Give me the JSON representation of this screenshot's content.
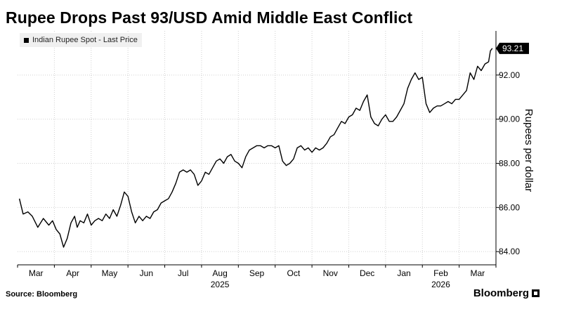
{
  "header": {
    "title": "Rupee Drops Past 93/USD Amid Middle East Conflict"
  },
  "legend": {
    "label": "Indian Rupee Spot - Last Price"
  },
  "footer": {
    "source": "Source: Bloomberg",
    "brand": "Bloomberg"
  },
  "colors": {
    "line": "#000000",
    "grid": "#d0d0d0",
    "last_price_box": "#000000"
  },
  "chart_data": {
    "type": "line",
    "title": "Rupee Drops Past 93/USD Amid Middle East Conflict",
    "ylabel": "Rupees per dollar",
    "xlabel": "",
    "ylim": [
      83.4,
      94
    ],
    "y_ticks": [
      "84.00",
      "86.00",
      "88.00",
      "90.00",
      "92.00"
    ],
    "y_tick_values": [
      84,
      86,
      88,
      90,
      92
    ],
    "x_ticks": [
      "Mar",
      "Apr",
      "May",
      "Jun",
      "Jul",
      "Aug",
      "Sep",
      "Oct",
      "Nov",
      "Dec",
      "Jan",
      "Feb",
      "Mar"
    ],
    "x_tick_positions": [
      0.5,
      1.5,
      2.5,
      3.5,
      4.5,
      5.5,
      6.5,
      7.5,
      8.5,
      9.5,
      10.5,
      11.5,
      12.5
    ],
    "year_labels": [
      {
        "label": "2025",
        "x": 5.5
      },
      {
        "label": "2026",
        "x": 11.5
      }
    ],
    "last_value_label": "93.21",
    "grid": true,
    "legend_position": "top-left",
    "series": [
      {
        "name": "Indian Rupee Spot - Last Price",
        "x": [
          0.05,
          0.15,
          0.28,
          0.4,
          0.55,
          0.7,
          0.85,
          0.95,
          1.05,
          1.15,
          1.25,
          1.35,
          1.45,
          1.55,
          1.62,
          1.7,
          1.8,
          1.9,
          2.0,
          2.1,
          2.2,
          2.3,
          2.4,
          2.5,
          2.6,
          2.7,
          2.8,
          2.9,
          3.0,
          3.1,
          3.2,
          3.3,
          3.4,
          3.5,
          3.6,
          3.7,
          3.8,
          3.9,
          4.0,
          4.1,
          4.2,
          4.3,
          4.4,
          4.5,
          4.6,
          4.7,
          4.8,
          4.9,
          5.0,
          5.1,
          5.2,
          5.3,
          5.4,
          5.5,
          5.6,
          5.7,
          5.8,
          5.9,
          6.0,
          6.1,
          6.2,
          6.3,
          6.4,
          6.5,
          6.6,
          6.7,
          6.8,
          6.9,
          7.0,
          7.1,
          7.2,
          7.3,
          7.4,
          7.5,
          7.6,
          7.7,
          7.8,
          7.9,
          8.0,
          8.1,
          8.2,
          8.3,
          8.4,
          8.5,
          8.6,
          8.7,
          8.8,
          8.9,
          9.0,
          9.1,
          9.2,
          9.3,
          9.4,
          9.5,
          9.6,
          9.7,
          9.8,
          9.9,
          10.0,
          10.1,
          10.2,
          10.3,
          10.4,
          10.5,
          10.6,
          10.7,
          10.8,
          10.9,
          11.0,
          11.1,
          11.2,
          11.3,
          11.4,
          11.5,
          11.6,
          11.7,
          11.8,
          11.9,
          12.0,
          12.1,
          12.2,
          12.3,
          12.4,
          12.5,
          12.6,
          12.7,
          12.8,
          12.85,
          12.9
        ],
        "values": [
          86.4,
          85.7,
          85.8,
          85.6,
          85.1,
          85.5,
          85.2,
          85.4,
          85.0,
          84.8,
          84.2,
          84.6,
          85.3,
          85.6,
          85.1,
          85.4,
          85.3,
          85.7,
          85.2,
          85.4,
          85.5,
          85.4,
          85.7,
          85.5,
          85.9,
          85.6,
          86.1,
          86.7,
          86.5,
          85.8,
          85.3,
          85.6,
          85.4,
          85.6,
          85.5,
          85.8,
          85.9,
          86.2,
          86.3,
          86.4,
          86.7,
          87.1,
          87.6,
          87.7,
          87.6,
          87.7,
          87.5,
          87.0,
          87.2,
          87.6,
          87.5,
          87.8,
          88.1,
          88.2,
          88.0,
          88.3,
          88.4,
          88.1,
          88.0,
          87.8,
          88.3,
          88.6,
          88.7,
          88.8,
          88.8,
          88.7,
          88.8,
          88.8,
          88.7,
          88.8,
          88.1,
          87.9,
          88.0,
          88.2,
          88.7,
          88.8,
          88.6,
          88.7,
          88.5,
          88.7,
          88.6,
          88.7,
          88.9,
          89.2,
          89.3,
          89.6,
          89.9,
          89.8,
          90.1,
          90.2,
          90.5,
          90.4,
          90.8,
          91.1,
          90.1,
          89.8,
          89.7,
          90.0,
          90.2,
          89.9,
          89.9,
          90.1,
          90.4,
          90.7,
          91.4,
          91.8,
          92.1,
          91.8,
          91.9,
          90.7,
          90.3,
          90.5,
          90.6,
          90.6,
          90.7,
          90.8,
          90.7,
          90.9,
          90.9,
          91.1,
          91.3,
          92.1,
          91.8,
          92.4,
          92.2,
          92.5,
          92.6,
          93.1,
          93.21
        ]
      }
    ]
  }
}
